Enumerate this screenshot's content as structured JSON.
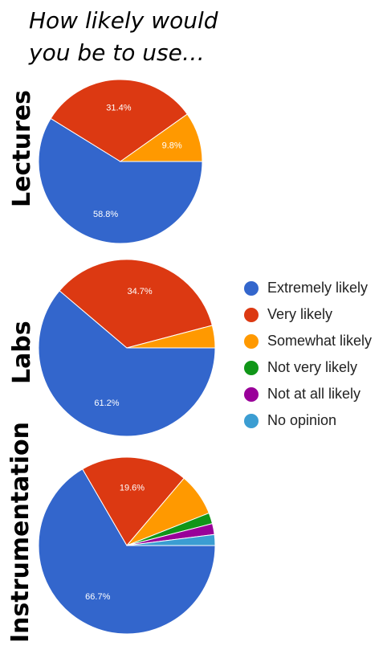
{
  "title_lines": [
    "How likely would",
    "you be to use…"
  ],
  "legend": [
    {
      "label": "Extremely likely",
      "color": "#3366cc"
    },
    {
      "label": "Very likely",
      "color": "#dc3912"
    },
    {
      "label": "Somewhat likely",
      "color": "#ff9900"
    },
    {
      "label": "Not very likely",
      "color": "#109618"
    },
    {
      "label": "Not at all likely",
      "color": "#990099"
    },
    {
      "label": "No opinion",
      "color": "#3b9dd2"
    }
  ],
  "chart_data": [
    {
      "type": "pie",
      "title": "Lectures",
      "categories": [
        "Extremely likely",
        "Very likely",
        "Somewhat likely",
        "Not very likely",
        "Not at all likely",
        "No opinion"
      ],
      "values": [
        58.8,
        31.4,
        9.8,
        0,
        0,
        0
      ],
      "data_labels": [
        "58.8%",
        "31.4%",
        "9.8%",
        "",
        "",
        ""
      ]
    },
    {
      "type": "pie",
      "title": "Labs",
      "categories": [
        "Extremely likely",
        "Very likely",
        "Somewhat likely",
        "Not very likely",
        "Not at all likely",
        "No opinion"
      ],
      "values": [
        61.2,
        34.7,
        4.1,
        0,
        0,
        0
      ],
      "data_labels": [
        "61.2%",
        "34.7%",
        "",
        "",
        "",
        ""
      ]
    },
    {
      "type": "pie",
      "title": "Instrumentation",
      "categories": [
        "Extremely likely",
        "Very likely",
        "Somewhat likely",
        "Not very likely",
        "Not at all likely",
        "No opinion"
      ],
      "values": [
        66.7,
        19.6,
        7.8,
        2.0,
        2.0,
        2.0
      ],
      "data_labels": [
        "66.7%",
        "19.6%",
        "",
        "",
        "",
        ""
      ]
    }
  ]
}
